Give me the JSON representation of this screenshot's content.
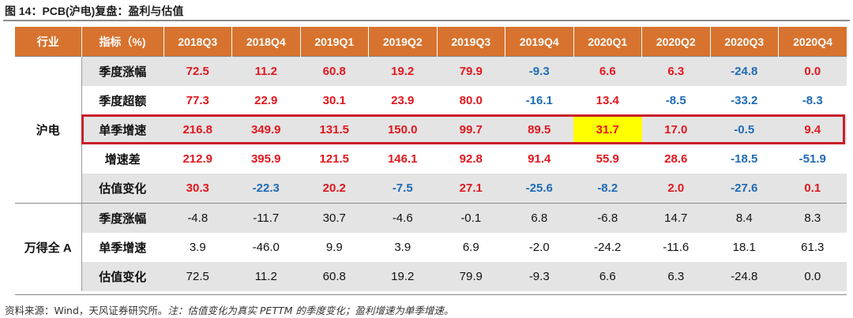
{
  "title": "图 14：PCB(沪电)复盘：盈利与估值",
  "header": [
    "行业",
    "指标（%)",
    "2018Q3",
    "2018Q4",
    "2019Q1",
    "2019Q2",
    "2019Q3",
    "2019Q4",
    "2020Q1",
    "2020Q2",
    "2020Q3",
    "2020Q4"
  ],
  "groups": [
    {
      "name": "沪电",
      "rows": [
        {
          "metric": "季度涨幅",
          "values": [
            "72.5",
            "11.2",
            "60.8",
            "19.2",
            "79.9",
            "-9.3",
            "6.6",
            "6.3",
            "-24.8",
            "0.0"
          ]
        },
        {
          "metric": "季度超额",
          "values": [
            "77.3",
            "22.9",
            "30.1",
            "23.9",
            "80.0",
            "-16.1",
            "13.4",
            "-8.5",
            "-33.2",
            "-8.3"
          ]
        },
        {
          "metric": "单季增速",
          "values": [
            "216.8",
            "349.9",
            "131.5",
            "150.0",
            "99.7",
            "89.5",
            "31.7",
            "17.0",
            "-0.5",
            "9.4"
          ]
        },
        {
          "metric": "增速差",
          "values": [
            "212.9",
            "395.9",
            "121.5",
            "146.1",
            "92.8",
            "91.4",
            "55.9",
            "28.6",
            "-18.5",
            "-51.9"
          ]
        },
        {
          "metric": "估值变化",
          "values": [
            "30.3",
            "-22.3",
            "20.2",
            "-7.5",
            "27.1",
            "-25.6",
            "-8.2",
            "2.0",
            "-27.6",
            "0.1"
          ]
        }
      ]
    },
    {
      "name": "万得全 A",
      "rows": [
        {
          "metric": "季度涨幅",
          "values": [
            "-4.8",
            "-11.7",
            "30.7",
            "-4.6",
            "-0.1",
            "6.8",
            "-6.8",
            "14.7",
            "8.4",
            "8.3"
          ]
        },
        {
          "metric": "单季增速",
          "values": [
            "3.9",
            "-46.0",
            "9.9",
            "3.9",
            "6.9",
            "-2.0",
            "-24.2",
            "-11.6",
            "18.1",
            "61.3"
          ]
        },
        {
          "metric": "估值变化",
          "values": [
            "72.5",
            "11.2",
            "60.8",
            "19.2",
            "79.9",
            "-9.3",
            "6.6",
            "6.3",
            "-24.8",
            "0.0"
          ]
        }
      ]
    }
  ],
  "colors": {
    "header_bg": "#d7732e",
    "positive": "#e1171e",
    "negative": "#1f6bb5",
    "highlight": "#ffff00",
    "box": "#c8202a"
  },
  "source": "资料来源：Wind，天风证券研究所。",
  "note": "注：估值变化为真实 PETTM 的季度变化；盈利增速为单季增速。"
}
